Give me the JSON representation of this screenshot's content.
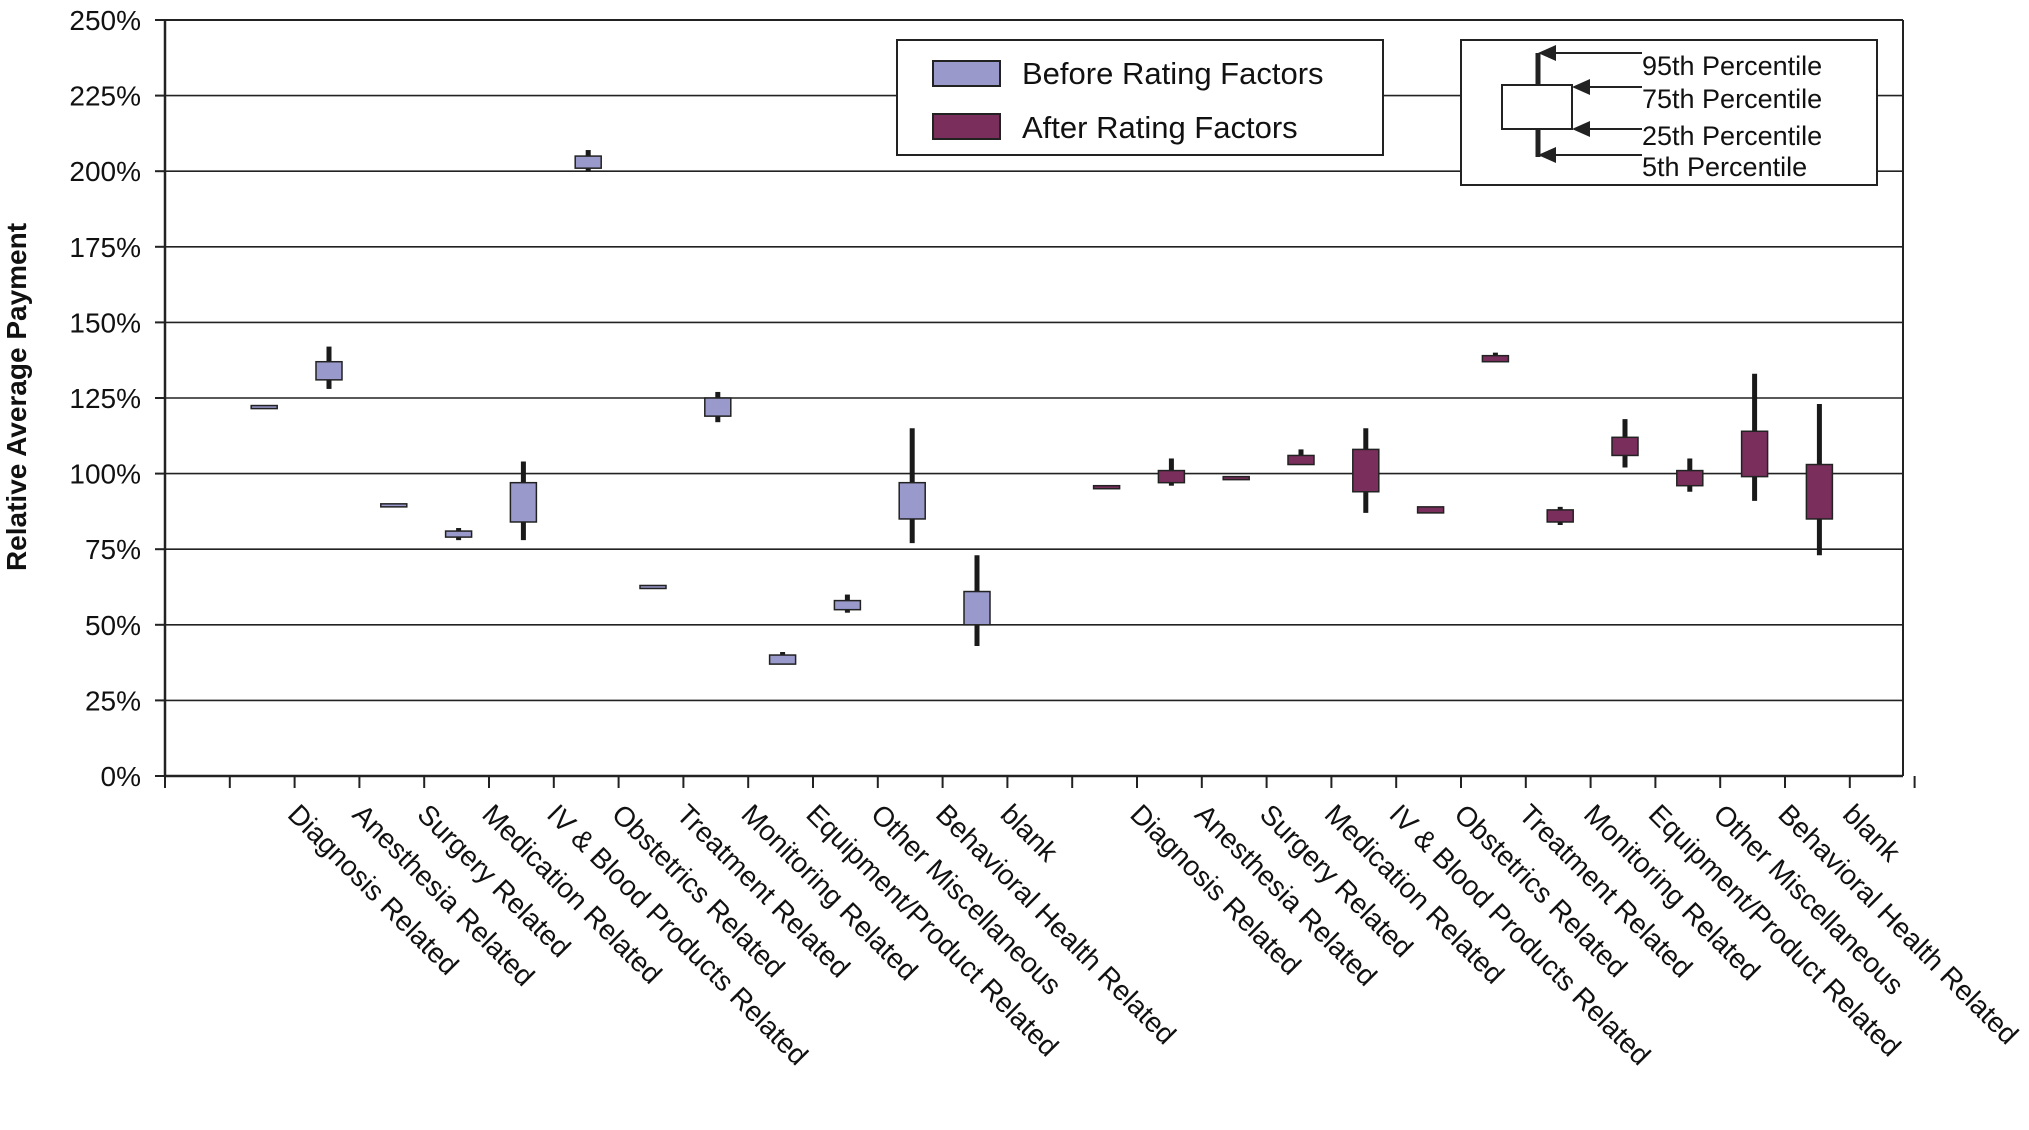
{
  "chart_data": {
    "type": "box",
    "ylabel": "Relative Average Payment",
    "xlabel": "",
    "ylim": [
      0,
      250
    ],
    "yticks": [
      "0%",
      "25%",
      "50%",
      "75%",
      "100%",
      "125%",
      "150%",
      "175%",
      "200%",
      "225%",
      "250%"
    ],
    "grid": true,
    "categories": [
      "Diagnosis Related",
      "Anesthesia Related",
      "Surgery Related",
      "Medication Related",
      "IV & Blood Products Related",
      "Obstetrics Related",
      "Treatment Related",
      "Monitoring Related",
      "Equipment/Product Related",
      "Other Miscellaneous",
      "Behavioral Health Related",
      "blank"
    ],
    "series": [
      {
        "name": "Before Rating Factors",
        "color": "#9999cc",
        "boxes": [
          {
            "p5": 121.5,
            "p25": 121.5,
            "p75": 122.5,
            "p95": 122.5
          },
          {
            "p5": 128,
            "p25": 131,
            "p75": 137,
            "p95": 142
          },
          {
            "p5": 89,
            "p25": 89,
            "p75": 90,
            "p95": 90
          },
          {
            "p5": 78,
            "p25": 79,
            "p75": 81,
            "p95": 82
          },
          {
            "p5": 78,
            "p25": 84,
            "p75": 97,
            "p95": 104
          },
          {
            "p5": 200,
            "p25": 201,
            "p75": 205,
            "p95": 207
          },
          {
            "p5": 63,
            "p25": 63,
            "p75": 63,
            "p95": 63
          },
          {
            "p5": 117,
            "p25": 119,
            "p75": 125,
            "p95": 127
          },
          {
            "p5": 37,
            "p25": 37,
            "p75": 40,
            "p95": 41
          },
          {
            "p5": 54,
            "p25": 55,
            "p75": 58,
            "p95": 60
          },
          {
            "p5": 77,
            "p25": 85,
            "p75": 97,
            "p95": 115
          },
          {
            "p5": 43,
            "p25": 50,
            "p75": 61,
            "p95": 73
          }
        ]
      },
      {
        "name": "After Rating Factors",
        "color": "#7a2e5c",
        "boxes": [
          {
            "p5": 95,
            "p25": 95,
            "p75": 96,
            "p95": 96
          },
          {
            "p5": 96,
            "p25": 97,
            "p75": 101,
            "p95": 105
          },
          {
            "p5": 98,
            "p25": 98,
            "p75": 99,
            "p95": 99
          },
          {
            "p5": 103,
            "p25": 103,
            "p75": 106,
            "p95": 108
          },
          {
            "p5": 87,
            "p25": 94,
            "p75": 108,
            "p95": 115
          },
          {
            "p5": 87,
            "p25": 87,
            "p75": 89,
            "p95": 89
          },
          {
            "p5": 137,
            "p25": 137,
            "p75": 139,
            "p95": 140
          },
          {
            "p5": 83,
            "p25": 84,
            "p75": 88,
            "p95": 89
          },
          {
            "p5": 102,
            "p25": 106,
            "p75": 112,
            "p95": 118
          },
          {
            "p5": 94,
            "p25": 96,
            "p75": 101,
            "p95": 105
          },
          {
            "p5": 91,
            "p25": 99,
            "p75": 114,
            "p95": 133
          },
          {
            "p5": 73,
            "p25": 85,
            "p75": 103,
            "p95": 123
          }
        ]
      }
    ],
    "legend": {
      "position": "top-center"
    },
    "key": {
      "position": "top-right",
      "labels": [
        "95th Percentile",
        "75th Percentile",
        "25th Percentile",
        "5th Percentile"
      ]
    }
  }
}
